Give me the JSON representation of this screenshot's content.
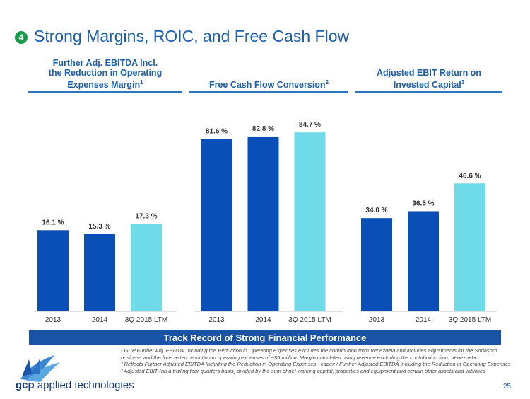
{
  "slide": {
    "number_badge": "4",
    "title": "Strong Margins, ROIC, and Free Cash Flow",
    "banner": "Track Record of Strong Financial Performance",
    "page_number": "25",
    "brand_bold": "gcp",
    "brand_rest": " applied technologies",
    "footnotes": [
      "¹ GCP Further Adj. EBITDA Including the Reduction in Operating Expenses excludes the contribution from Venezuela and includes adjustments for the Sodasorb",
      "business and the forecasted reduction in operating expenses of ~$6 million. Margin calculated using revenue excluding the contribution from Venezuela.",
      "² Reflects Further Adjusted EBITDA Including the Reduction in Operating Expenses - capex / Further Adjusted EBITDA Including the Reduction in Operating Expenses",
      "³ Adjusted EBIT (on a trailing four quarters basis) divided by the sum of net working capital, properties and equipment and certain other assets and liabilities"
    ]
  },
  "colors": {
    "dark_bar": "#0a4fb8",
    "light_bar": "#70dbe8",
    "accent": "#1f5fa8",
    "badge": "#1b9a4b",
    "banner": "#1a52a6"
  },
  "chart_data": [
    {
      "type": "bar",
      "title_lines": [
        "Further Adj. EBITDA Incl.",
        "the Reduction in Operating",
        "Expenses Margin"
      ],
      "title_sup": "1",
      "categories": [
        "2013",
        "2014",
        "3Q 2015 LTM"
      ],
      "values": [
        16.1,
        15.3,
        17.3
      ],
      "labels": [
        "16.1 %",
        "15.3 %",
        "17.3 %"
      ],
      "ylim": [
        0,
        40
      ]
    },
    {
      "type": "bar",
      "title_lines": [
        "Free Cash Flow Conversion"
      ],
      "title_sup": "2",
      "categories": [
        "2013",
        "2014",
        "3Q 2015 LTM"
      ],
      "values": [
        81.6,
        82.8,
        84.7
      ],
      "labels": [
        "81.6 %",
        "82.8 %",
        "84.7 %"
      ],
      "ylim": [
        0,
        95.5
      ]
    },
    {
      "type": "bar",
      "title_lines": [
        "Adjusted EBIT Return on",
        "Invested Capital"
      ],
      "title_sup": "3",
      "categories": [
        "2013",
        "2014",
        "3Q 2015 LTM"
      ],
      "values": [
        34.0,
        36.5,
        46.6
      ],
      "labels": [
        "34.0 %",
        "36.5 %",
        "46.6 %"
      ],
      "ylim": [
        0,
        73.5
      ]
    }
  ]
}
